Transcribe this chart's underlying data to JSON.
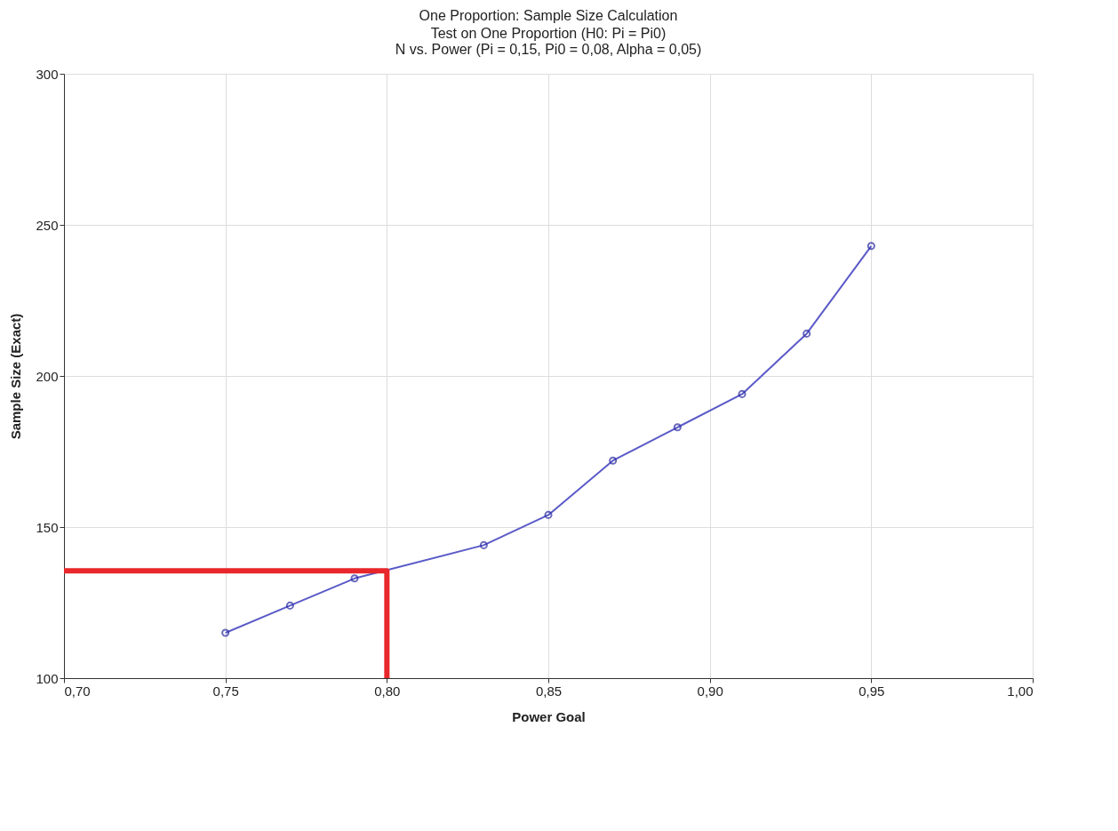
{
  "chart_data": {
    "type": "line",
    "title": "One Proportion: Sample Size Calculation",
    "subtitle": [
      "Test on One Proportion (H0:  Pi = Pi0)",
      "N vs. Power (Pi = 0,15, Pi0 = 0,08, Alpha = 0,05)"
    ],
    "xlabel": "Power Goal",
    "ylabel": "Sample Size (Exact)",
    "series": [
      {
        "color": "#5a5ac8",
        "marker": "circle",
        "x": [
          0.75,
          0.77,
          0.79,
          0.83,
          0.85,
          0.87,
          0.89,
          0.91,
          0.93,
          0.95
        ],
        "values": [
          115,
          124,
          133,
          144,
          154,
          172,
          183,
          194,
          214,
          243
        ]
      },
      {
        "type": "line",
        "color": "#e8262b",
        "marker": "none",
        "x": [
          0.7,
          0.8,
          0.8
        ],
        "values": [
          135.5,
          135.5,
          100
        ]
      }
    ],
    "xlim": [
      0.7,
      1.0
    ],
    "xticks": [
      {
        "value": 0.7,
        "label": "0,70"
      },
      {
        "value": 0.75,
        "label": "0,75"
      },
      {
        "value": 0.8,
        "label": "0,80"
      },
      {
        "value": 0.85,
        "label": "0,85"
      },
      {
        "value": 0.9,
        "label": "0,90"
      },
      {
        "value": 0.95,
        "label": "0,95"
      },
      {
        "value": 1.0,
        "label": "1,00"
      }
    ],
    "ylim": [
      100,
      300
    ],
    "yticks": [
      100,
      150,
      200,
      250,
      300
    ],
    "grid": true
  }
}
